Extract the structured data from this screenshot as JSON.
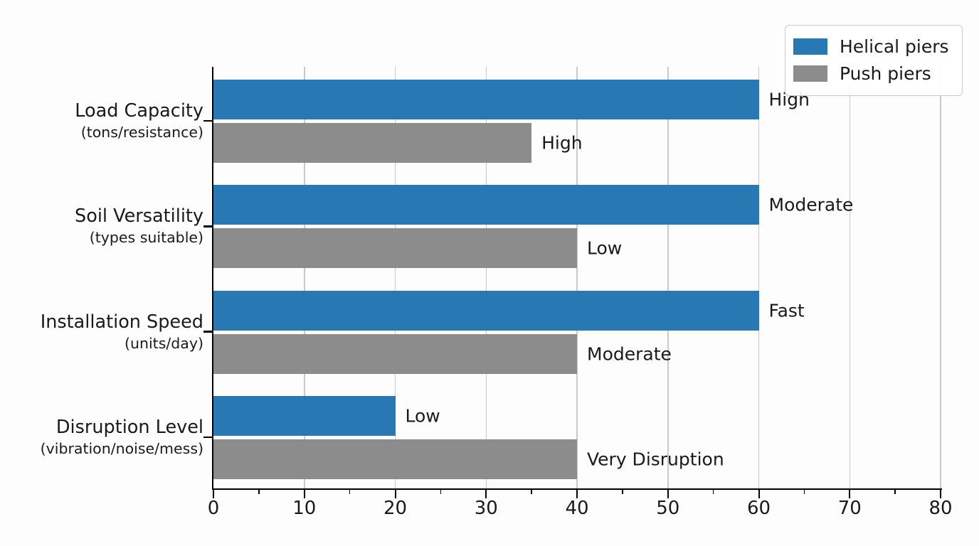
{
  "chart_data": {
    "type": "bar",
    "orientation": "horizontal",
    "title": "",
    "xlabel": "",
    "ylabel": "",
    "xlim": [
      0,
      80
    ],
    "x_ticks": [
      0,
      10,
      20,
      30,
      40,
      50,
      60,
      70,
      80
    ],
    "x_minor_ticks": [
      5,
      15,
      25,
      35,
      45,
      55,
      65,
      75
    ],
    "grid": true,
    "legend_position": "upper-right",
    "categories": [
      {
        "label": "Load Capacity",
        "sublabel": "(tons/resistance)"
      },
      {
        "label": "Soil Versatility",
        "sublabel": "(types suitable)"
      },
      {
        "label": "Installation Speed",
        "sublabel": "(units/day)"
      },
      {
        "label": "Disruption Level",
        "sublabel": "(vibration/noise/mess)"
      }
    ],
    "series": [
      {
        "name": "Helical piers",
        "color": "#2878b4",
        "values": [
          60,
          60,
          60,
          20
        ],
        "annotations": [
          "High",
          "Moderate",
          "Fast",
          "Low"
        ]
      },
      {
        "name": "Push piers",
        "color": "#8c8c8c",
        "values": [
          35,
          40,
          40,
          40
        ],
        "annotations": [
          "High",
          "Low",
          "Moderate",
          "Very Disruption"
        ]
      }
    ]
  },
  "colors": {
    "grid": "#c9c9c9",
    "axis": "#000000",
    "text": "#1a1a1a",
    "background": "#fdfdfd",
    "legend_border": "#c9c9c9"
  }
}
